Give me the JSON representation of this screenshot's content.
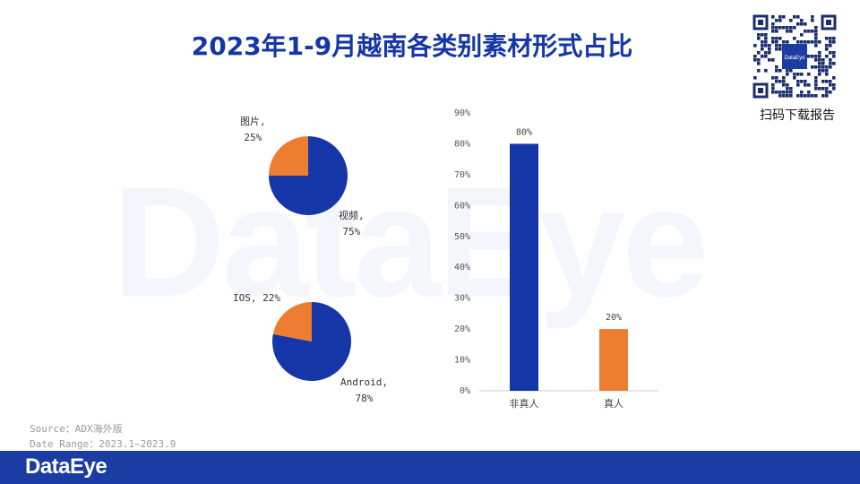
{
  "watermark": "DataEye",
  "title": "2023年1-9月越南各类别素材形式占比",
  "qr_caption": "扫码下载报告",
  "qr_center": "DataEye",
  "colors": {
    "blue": "#1536a6",
    "orange": "#ed7d31",
    "title": "#1536a6",
    "footer": "#1b3ca3"
  },
  "source_line1": "Source：ADX海外版",
  "source_line2": "Date Range：2023.1~2023.9",
  "footer_logo": "DataEye",
  "chart_data": [
    {
      "type": "pie",
      "slices": [
        {
          "label": "视频",
          "value": 75,
          "color": "#1536a6",
          "text_name": "视频,",
          "text_value": "75%"
        },
        {
          "label": "图片",
          "value": 25,
          "color": "#ed7d31",
          "text_name": "图片,",
          "text_value": "25%"
        }
      ]
    },
    {
      "type": "pie",
      "slices": [
        {
          "label": "Android",
          "value": 78,
          "color": "#1536a6",
          "text_name": "Android,",
          "text_value": "78%"
        },
        {
          "label": "IOS",
          "value": 22,
          "color": "#ed7d31",
          "text_name": "IOS, 22%",
          "text_value": ""
        }
      ]
    },
    {
      "type": "bar",
      "categories": [
        "非真人",
        "真人"
      ],
      "values": [
        80,
        20
      ],
      "value_labels": [
        "80%",
        "20%"
      ],
      "colors": [
        "#1536a6",
        "#ed7d31"
      ],
      "ylim": [
        0,
        90
      ],
      "yticks": [
        "0%",
        "10%",
        "20%",
        "30%",
        "40%",
        "50%",
        "60%",
        "70%",
        "80%",
        "90%"
      ],
      "grid": false
    }
  ]
}
